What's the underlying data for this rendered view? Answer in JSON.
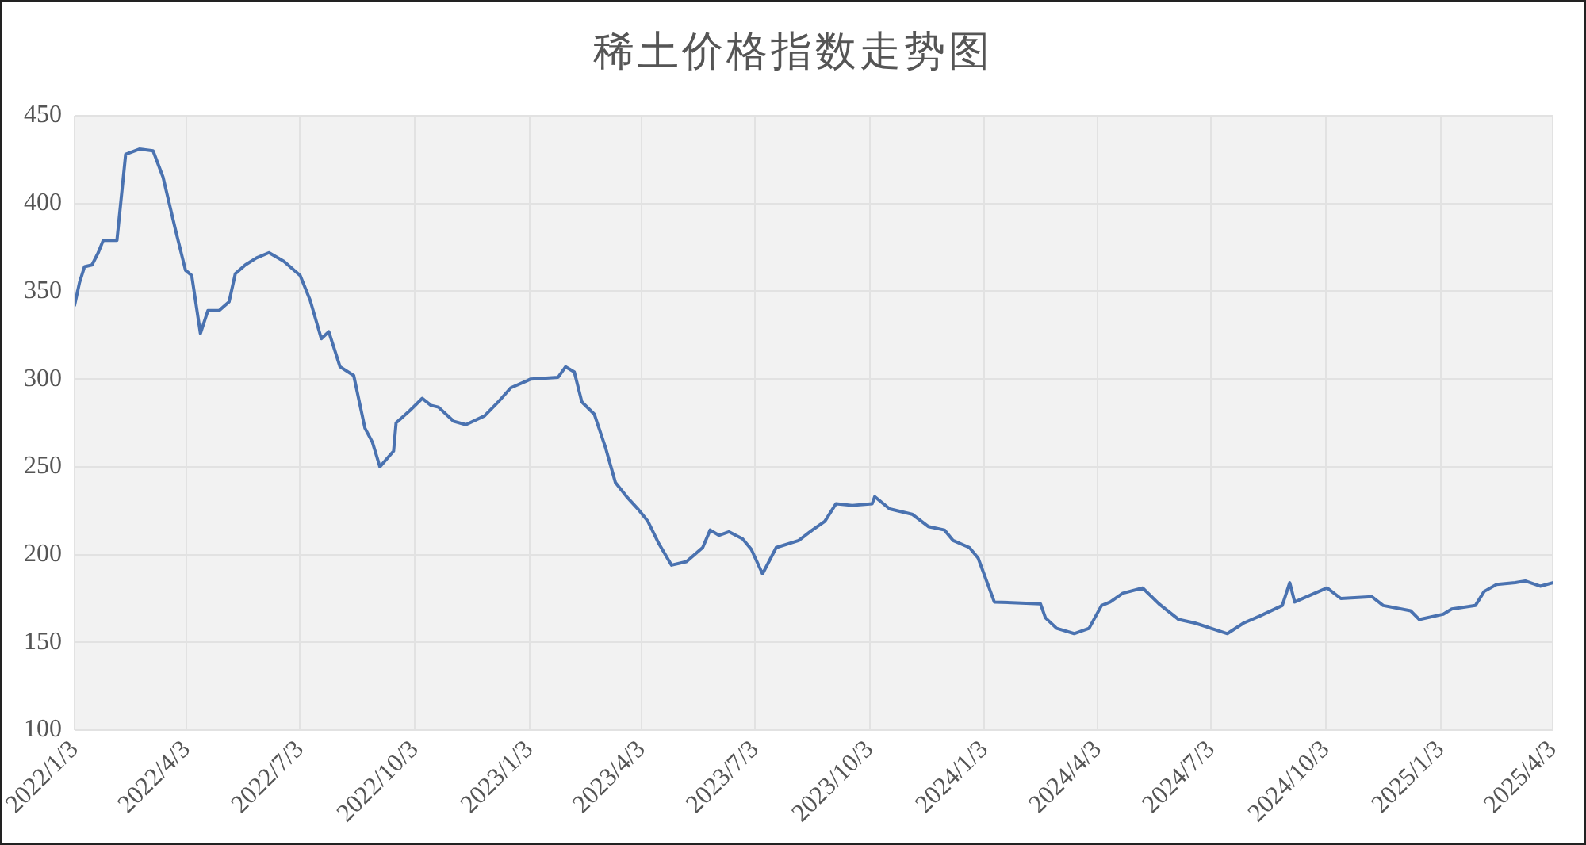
{
  "chart_data": {
    "type": "line",
    "title": "稀土价格指数走势图",
    "grid": true,
    "legend": false,
    "marker": "none",
    "line_style": "solid",
    "xlim": [
      "2022-01-03",
      "2025-04-03"
    ],
    "xticks": [
      {
        "value": "2022-01-03",
        "label": "2022/1/3"
      },
      {
        "value": "2022-04-03",
        "label": "2022/4/3"
      },
      {
        "value": "2022-07-03",
        "label": "2022/7/3"
      },
      {
        "value": "2022-10-03",
        "label": "2022/10/3"
      },
      {
        "value": "2023-01-03",
        "label": "2023/1/3"
      },
      {
        "value": "2023-04-03",
        "label": "2023/4/3"
      },
      {
        "value": "2023-07-03",
        "label": "2023/7/3"
      },
      {
        "value": "2023-10-03",
        "label": "2023/10/3"
      },
      {
        "value": "2024-01-03",
        "label": "2024/1/3"
      },
      {
        "value": "2024-04-03",
        "label": "2024/4/3"
      },
      {
        "value": "2024-07-03",
        "label": "2024/7/3"
      },
      {
        "value": "2024-10-03",
        "label": "2024/10/3"
      },
      {
        "value": "2025-01-03",
        "label": "2025/1/3"
      },
      {
        "value": "2025-04-03",
        "label": "2025/4/3"
      }
    ],
    "ylim": [
      100,
      450
    ],
    "yticks": [
      100,
      150,
      200,
      250,
      300,
      350,
      400,
      450
    ],
    "x": [
      "2022-01-03",
      "2022-01-07",
      "2022-01-11",
      "2022-01-17",
      "2022-01-22",
      "2022-01-26",
      "2022-02-06",
      "2022-02-13",
      "2022-02-24",
      "2022-03-07",
      "2022-03-15",
      "2022-03-25",
      "2022-04-02",
      "2022-04-07",
      "2022-04-14",
      "2022-04-20",
      "2022-04-29",
      "2022-05-07",
      "2022-05-12",
      "2022-05-20",
      "2022-05-29",
      "2022-06-08",
      "2022-06-20",
      "2022-07-03",
      "2022-07-11",
      "2022-07-20",
      "2022-07-26",
      "2022-08-04",
      "2022-08-15",
      "2022-08-24",
      "2022-08-30",
      "2022-09-05",
      "2022-09-16",
      "2022-09-18",
      "2022-09-29",
      "2022-10-09",
      "2022-10-16",
      "2022-10-22",
      "2022-11-03",
      "2022-11-13",
      "2022-11-28",
      "2022-12-09",
      "2022-12-19",
      "2023-01-01",
      "2023-01-04",
      "2023-01-26",
      "2023-02-01",
      "2023-02-08",
      "2023-02-14",
      "2023-02-24",
      "2023-03-05",
      "2023-03-13",
      "2023-03-22",
      "2023-03-31",
      "2023-04-08",
      "2023-04-17",
      "2023-04-27",
      "2023-05-09",
      "2023-05-22",
      "2023-05-28",
      "2023-06-04",
      "2023-06-12",
      "2023-06-23",
      "2023-06-30",
      "2023-07-09",
      "2023-07-20",
      "2023-08-07",
      "2023-08-18",
      "2023-08-28",
      "2023-09-06",
      "2023-09-19",
      "2023-10-05",
      "2023-10-07",
      "2023-10-19",
      "2023-11-06",
      "2023-11-19",
      "2023-12-02",
      "2023-12-09",
      "2023-12-22",
      "2023-12-29",
      "2024-01-11",
      "2024-02-17",
      "2024-02-21",
      "2024-03-01",
      "2024-03-15",
      "2024-03-27",
      "2024-04-06",
      "2024-04-13",
      "2024-04-23",
      "2024-05-09",
      "2024-05-22",
      "2024-06-07",
      "2024-06-20",
      "2024-07-16",
      "2024-07-29",
      "2024-08-11",
      "2024-08-29",
      "2024-09-04",
      "2024-09-08",
      "2024-09-24",
      "2024-10-04",
      "2024-10-15",
      "2024-11-09",
      "2024-11-18",
      "2024-12-10",
      "2024-12-17",
      "2025-01-05",
      "2025-01-12",
      "2025-01-31",
      "2025-02-07",
      "2025-02-17",
      "2025-03-04",
      "2025-03-12",
      "2025-03-24",
      "2025-04-03"
    ],
    "series": [
      {
        "color": "#4a72b0",
        "values": [
          342,
          355,
          364,
          365,
          372,
          379,
          379,
          428,
          431,
          430,
          415,
          385,
          362,
          359,
          326,
          339,
          339,
          344,
          360,
          365,
          369,
          372,
          367,
          359,
          345,
          323,
          327,
          307,
          302,
          272,
          264,
          250,
          259,
          275,
          282,
          289,
          285,
          284,
          276,
          274,
          279,
          287,
          295,
          299,
          300,
          301,
          307,
          304,
          287,
          280,
          261,
          241,
          233,
          226,
          219,
          206,
          194,
          196,
          204,
          214,
          211,
          213,
          209,
          203,
          189,
          204,
          208,
          214,
          219,
          229,
          228,
          229,
          233,
          226,
          223,
          216,
          214,
          208,
          204,
          198,
          173,
          172,
          164,
          158,
          155,
          158,
          171,
          173,
          178,
          181,
          172,
          163,
          161,
          155,
          161,
          165,
          171,
          184,
          173,
          178,
          181,
          175,
          176,
          171,
          168,
          163,
          166,
          169,
          171,
          179,
          183,
          184,
          185,
          182,
          184
        ]
      }
    ]
  }
}
